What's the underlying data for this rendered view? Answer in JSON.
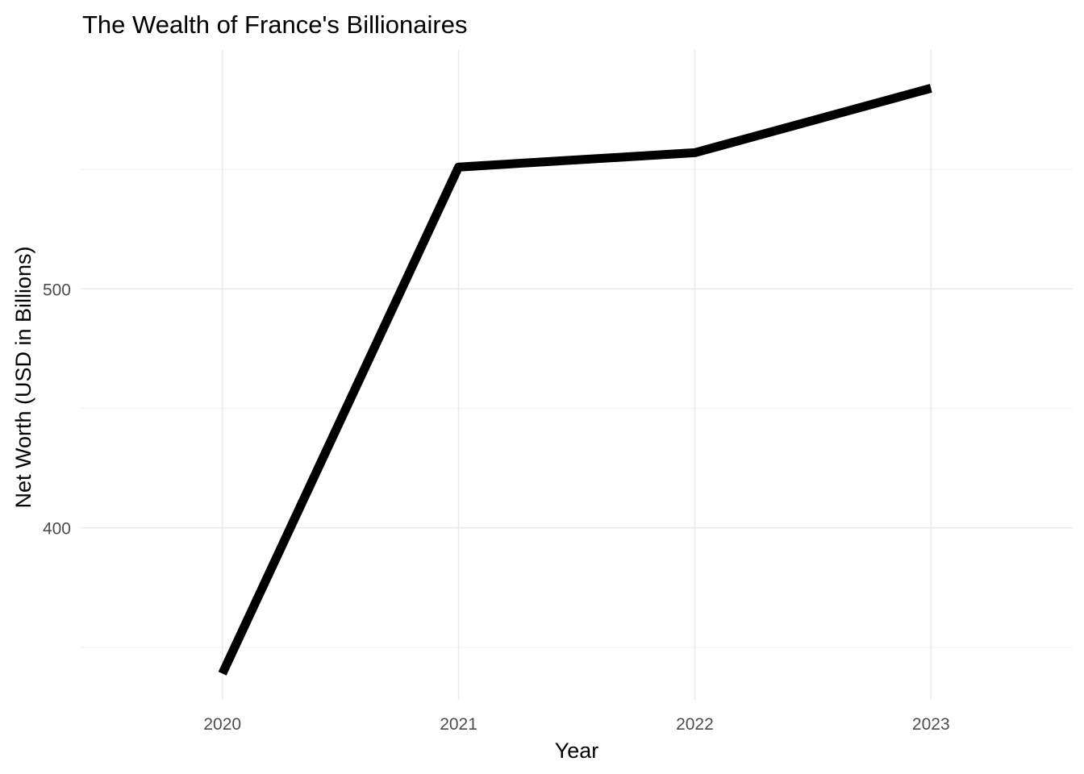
{
  "chart_data": {
    "type": "line",
    "title": "The Wealth of France's Billionaires",
    "xlabel": "Year",
    "ylabel": "Net Worth (USD in Billions)",
    "x": [
      "2020",
      "2021",
      "2022",
      "2023"
    ],
    "series": [
      {
        "values": [
          339,
          551,
          557,
          584
        ]
      }
    ],
    "xlim": [
      2019.4,
      2023.6
    ],
    "ylim": [
      328,
      600
    ],
    "y_ticks": [
      400,
      500
    ],
    "y_tick_labels": [
      "400",
      "500"
    ],
    "x_tick_labels": [
      "2020",
      "2021",
      "2022",
      "2023"
    ],
    "grid": true,
    "legend": "none",
    "colors": {
      "line": "#000000",
      "grid": "#ebebeb",
      "tick_text": "#4d4d4d"
    }
  }
}
